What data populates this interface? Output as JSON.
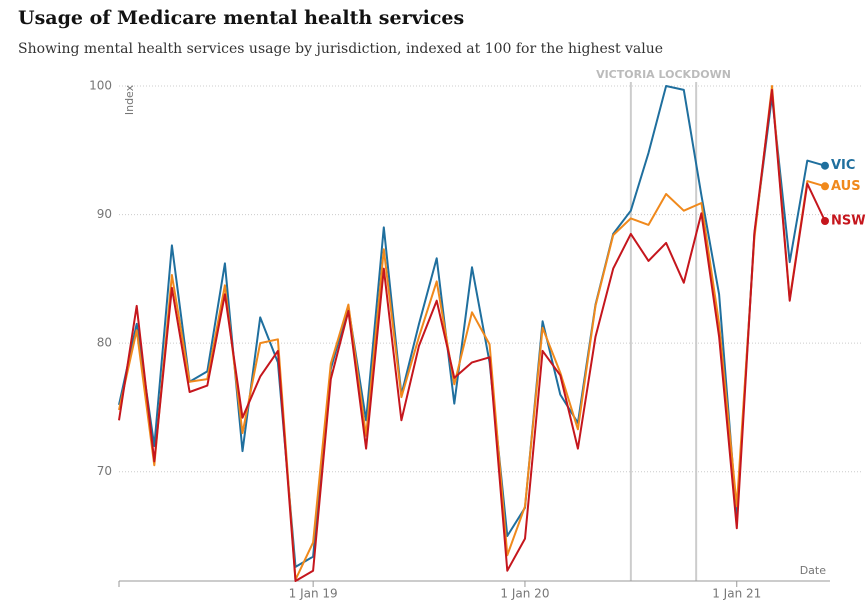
{
  "chart_data": {
    "type": "line",
    "title": "Usage of Medicare mental health services",
    "subtitle": "Showing mental health services usage by jurisdiction, indexed at 100 for the highest value",
    "y_label": "Index",
    "x_label": "Date",
    "annotation": "VICTORIA LOCKDOWN",
    "categories": [
      null,
      null,
      null,
      null,
      null,
      null,
      null,
      null,
      null,
      null,
      null,
      "1 Jan 19",
      null,
      null,
      null,
      null,
      null,
      null,
      null,
      null,
      null,
      null,
      null,
      "1 Jan 20",
      null,
      null,
      null,
      null,
      null,
      null,
      null,
      null,
      null,
      null,
      null,
      "1 Jan 21",
      null,
      null,
      null,
      null,
      null
    ],
    "ylim": [
      61.5,
      100
    ],
    "yticks": [
      70,
      80,
      90,
      100
    ],
    "grid": true,
    "series": [
      {
        "name": "VIC",
        "color": "#1f6f9e",
        "values": [
          75.2,
          81.5,
          72,
          87.6,
          77,
          77.8,
          86.2,
          71.6,
          82,
          78.5,
          62.6,
          63.4,
          78,
          82.8,
          74,
          89,
          76,
          81.5,
          86.6,
          75.3,
          85.9,
          78.5,
          65,
          67.2,
          81.7,
          76,
          73.8,
          83,
          88.5,
          90.3,
          94.8,
          100,
          99.7,
          91.5,
          83.8,
          66.5,
          88.5,
          99.2,
          86.3,
          94.2,
          93.8
        ]
      },
      {
        "name": "AUS",
        "color": "#f0891c",
        "values": [
          74.8,
          81,
          70.5,
          85.3,
          77,
          77.2,
          84.5,
          73,
          80,
          80.3,
          61.6,
          64.5,
          78.4,
          83,
          72.8,
          87.3,
          75.8,
          80.5,
          84.8,
          76.8,
          82.4,
          79.9,
          63.5,
          67.3,
          81.2,
          77.7,
          73.3,
          82.9,
          88.4,
          89.7,
          89.2,
          91.6,
          90.3,
          90.9,
          81.5,
          67.3,
          88.2,
          100,
          83.4,
          92.6,
          92.2
        ]
      },
      {
        "name": "NSW",
        "color": "#c5161d",
        "values": [
          74,
          82.9,
          70.8,
          84.3,
          76.2,
          76.7,
          83.8,
          74.2,
          77.4,
          79.4,
          61.5,
          62.3,
          77.2,
          82.5,
          71.8,
          85.8,
          74,
          79.8,
          83.3,
          77.3,
          78.5,
          78.9,
          62.3,
          64.8,
          79.4,
          77.5,
          71.8,
          80.5,
          85.8,
          88.5,
          86.4,
          87.8,
          84.7,
          90.1,
          80.5,
          65.6,
          88.6,
          99.7,
          83.3,
          92.4,
          89.5
        ]
      }
    ]
  }
}
